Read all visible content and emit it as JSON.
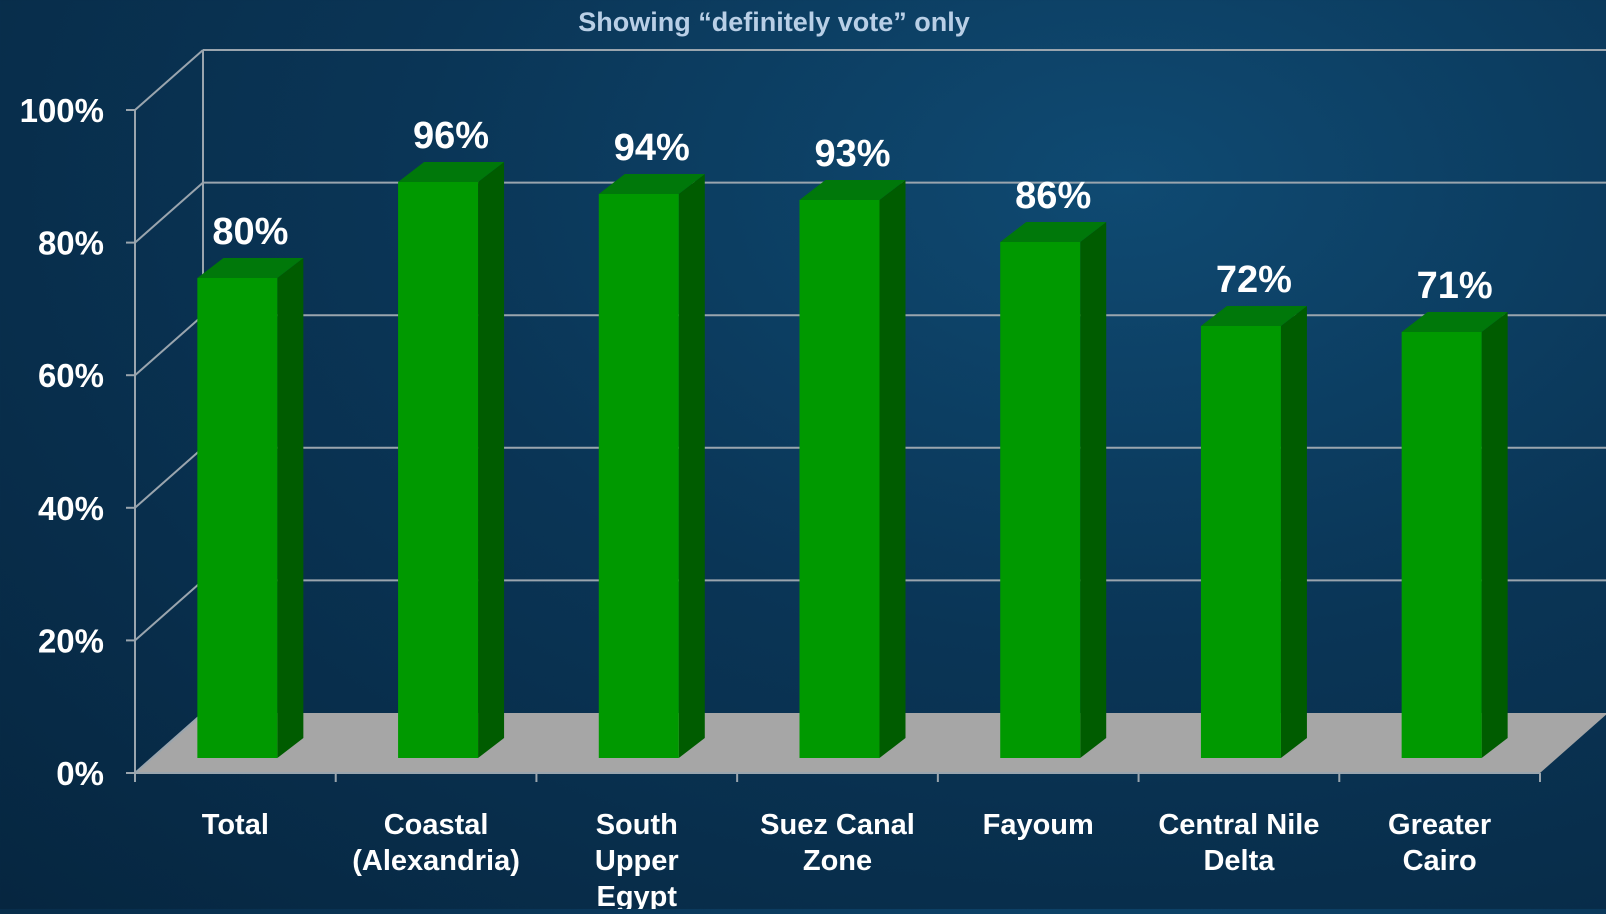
{
  "chart_data": {
    "type": "bar",
    "subtitle": "Showing “definitely vote” only",
    "categories": [
      [
        "Total"
      ],
      [
        "Coastal",
        "(Alexandria)"
      ],
      [
        "South",
        "Upper",
        "Egypt"
      ],
      [
        "Suez Canal",
        "Zone"
      ],
      [
        "Fayoum"
      ],
      [
        "Central Nile",
        "Delta"
      ],
      [
        "Greater",
        "Cairo"
      ]
    ],
    "values": [
      80,
      96,
      94,
      93,
      86,
      72,
      71
    ],
    "data_labels": [
      "80%",
      "96%",
      "94%",
      "93%",
      "86%",
      "72%",
      "71%"
    ],
    "ylim": [
      0,
      100
    ],
    "yticks": [
      "0%",
      "20%",
      "40%",
      "60%",
      "80%",
      "100%"
    ],
    "grid": true,
    "three_d": true,
    "colors": {
      "bar_front": "#009900",
      "bar_top": "#00780a",
      "bar_side": "#005c00",
      "floor": "#a6a6a6",
      "gridline": "#9aa5ae",
      "subtitle": "#b9cfe6",
      "text": "#ffffff"
    }
  }
}
